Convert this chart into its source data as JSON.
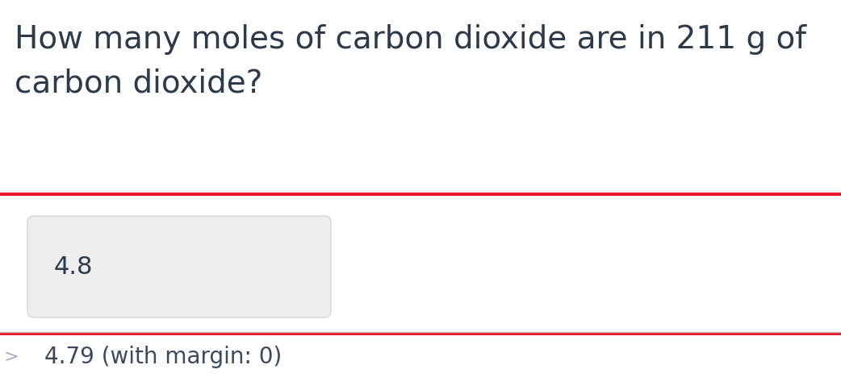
{
  "question_line1": "How many moles of carbon dioxide are in 211 g of",
  "question_line2": "carbon dioxide?",
  "answer_text": "4.8",
  "answer_note": "4.79 (with margin: 0)",
  "bg_color": "#ffffff",
  "question_color": "#2d3a4a",
  "answer_color": "#2d3a4a",
  "note_color": "#3d4a5c",
  "input_box_bg": "#eeeeee",
  "input_box_border": "#cccccc",
  "red_border_color": "#e8192c",
  "divider_color": "#cccccc",
  "question_fontsize": 28,
  "answer_fontsize": 22,
  "note_fontsize": 20
}
